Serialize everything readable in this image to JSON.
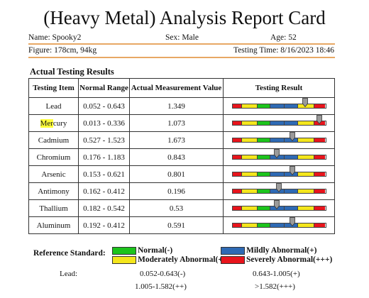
{
  "title": "(Heavy Metal) Analysis Report Card",
  "info": {
    "name": "Name: Spooky2",
    "sex": "Sex: Male",
    "age": "Age: 52",
    "figure": "Figure: 178cm, 94kg",
    "testing_time": "Testing Time: 8/16/2023 18:46"
  },
  "section_title": "Actual Testing Results",
  "table": {
    "headers": [
      "Testing Item",
      "Normal Range",
      "Actual Measurement Value",
      "Testing Result"
    ],
    "rows": [
      {
        "item": "Lead",
        "range": "0.052 - 0.643",
        "value": "1.349",
        "level": 0.78
      },
      {
        "item": "Mercury",
        "range": "0.013 - 0.336",
        "value": "1.073",
        "level": 0.93
      },
      {
        "item": "Cadmium",
        "range": "0.527 - 1.523",
        "value": "1.673",
        "level": 0.64
      },
      {
        "item": "Chromium",
        "range": "0.176 - 1.183",
        "value": "0.843",
        "level": 0.48
      },
      {
        "item": "Arsenic",
        "range": "0.153 - 0.621",
        "value": "0.801",
        "level": 0.64
      },
      {
        "item": "Antimony",
        "range": "0.162 - 0.412",
        "value": "0.196",
        "level": 0.5
      },
      {
        "item": "Thallium",
        "range": "0.182 - 0.542",
        "value": "0.53",
        "level": 0.48
      },
      {
        "item": "Aluminum",
        "range": "0.192 - 0.412",
        "value": "0.591",
        "level": 0.64
      }
    ]
  },
  "scale_colors": [
    "#e8141c",
    "#f4e61c",
    "#1cc41c",
    "#2e6ab4",
    "#2e6ab4",
    "#f4e61c",
    "#e8141c"
  ],
  "scale_fractions": [
    0.1,
    0.17,
    0.14,
    0.15,
    0.15,
    0.17,
    0.12
  ],
  "reference": {
    "title": "Reference Standard:",
    "legend": [
      {
        "label": "Normal(-)",
        "color": "#1cc41c"
      },
      {
        "label": "Mildly Abnormal(+)",
        "color": "#2e6ab4"
      },
      {
        "label": "Moderately Abnormal(++)",
        "color": "#f4e61c"
      },
      {
        "label": "Severely Abnormal(+++)",
        "color": "#e8141c"
      }
    ],
    "lead_label": "Lead:",
    "lead_ranges": [
      "0.052-0.643(-)",
      "0.643-1.005(+)",
      "1.005-1.582(++)",
      ">1.582(+++)"
    ]
  }
}
